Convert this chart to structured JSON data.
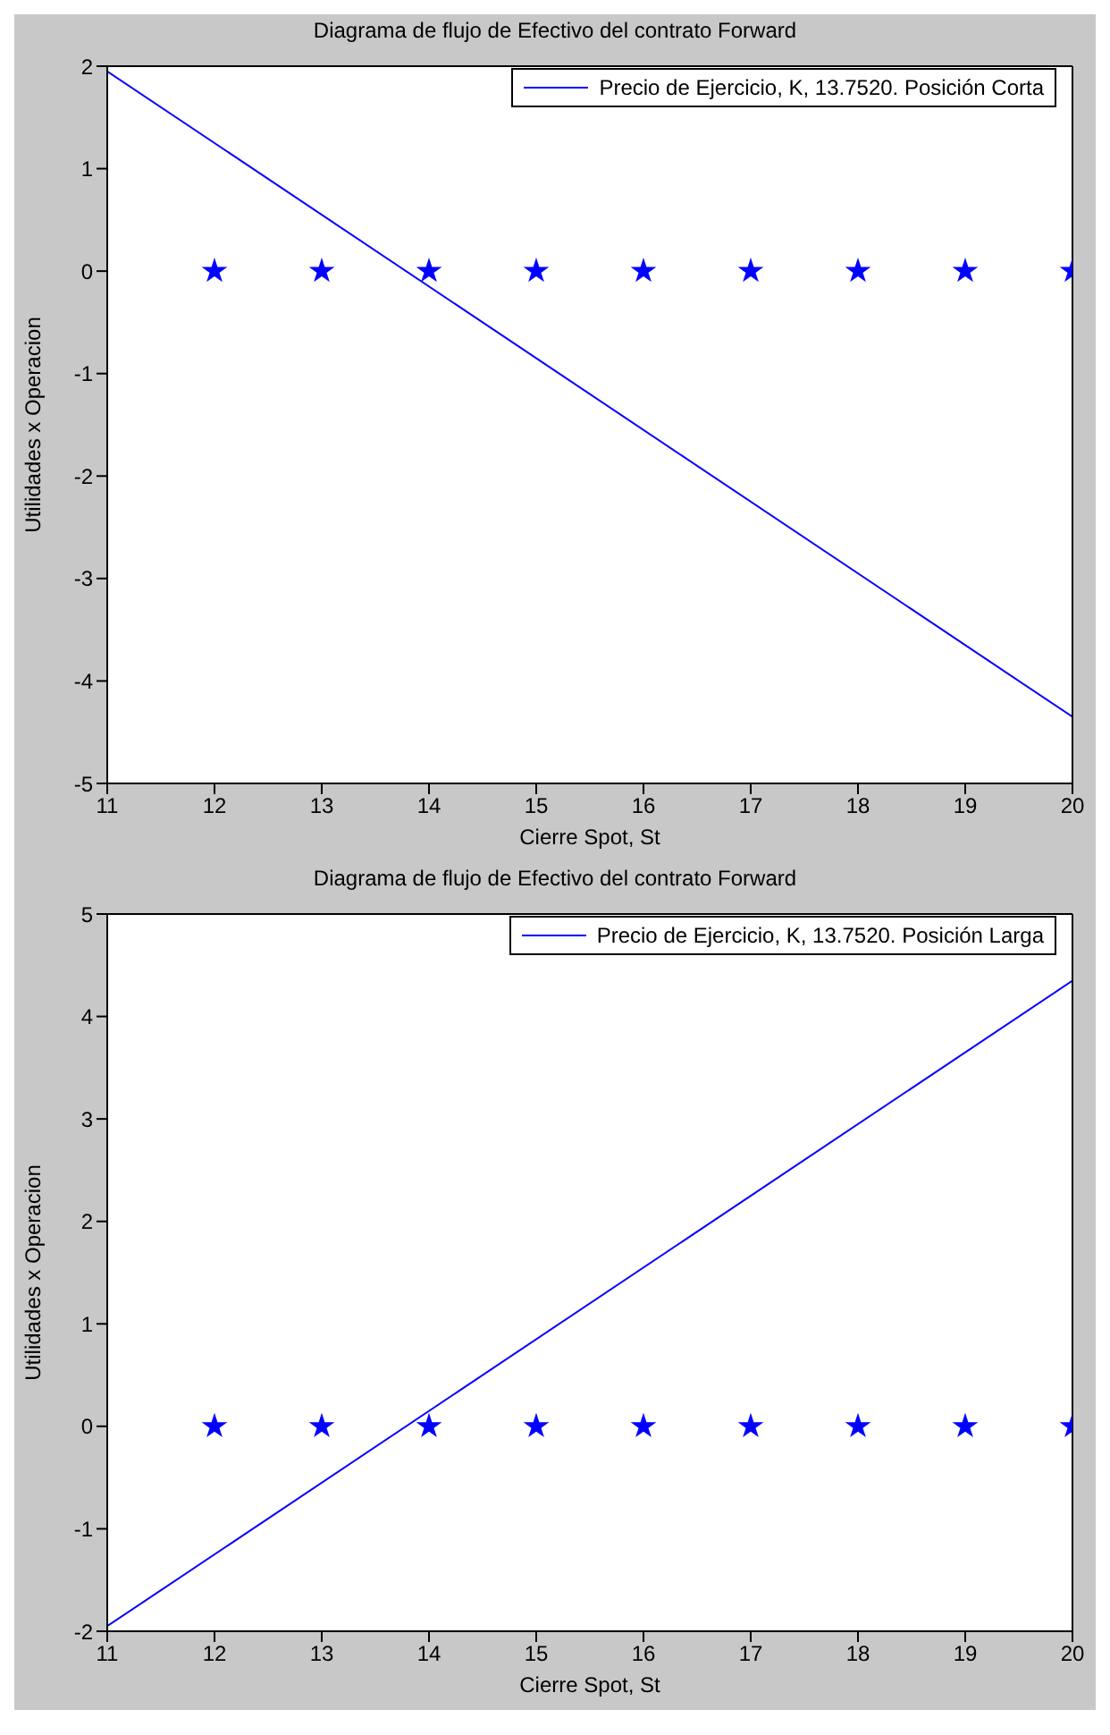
{
  "chart_data": [
    {
      "type": "line",
      "title": "Diagrama de flujo de Efectivo del contrato Forward",
      "xlabel": "Cierre Spot, St",
      "ylabel": "Utilidades x Operacion",
      "legend": "top right",
      "series": [
        {
          "name": "Precio de Ejercicio, K, 13.7520. Posición Corta",
          "color": "#0000ff",
          "marker": "none",
          "line_style": "solid",
          "x": [
            11,
            20
          ],
          "values": [
            1.95,
            -4.35
          ]
        },
        {
          "color": "#0000ff",
          "type": "scatter",
          "marker": "star",
          "x": [
            12,
            13,
            14,
            15,
            16,
            17,
            18,
            19,
            20
          ],
          "values": [
            0,
            0,
            0,
            0,
            0,
            0,
            0,
            0,
            0
          ]
        }
      ],
      "xlim": [
        11,
        20
      ],
      "xticks": [
        11,
        12,
        13,
        14,
        15,
        16,
        17,
        18,
        19,
        20
      ],
      "ylim": [
        -5,
        2
      ],
      "yticks": [
        -5,
        -4,
        -3,
        -2,
        -1,
        0,
        1,
        2
      ]
    },
    {
      "type": "line",
      "title": "Diagrama de flujo de Efectivo del contrato Forward",
      "xlabel": "Cierre Spot, St",
      "ylabel": "Utilidades x Operacion",
      "legend": "top right",
      "series": [
        {
          "name": "Precio de Ejercicio, K, 13.7520. Posición Larga",
          "color": "#0000ff",
          "marker": "none",
          "line_style": "solid",
          "x": [
            11,
            20
          ],
          "values": [
            -1.95,
            4.35
          ]
        },
        {
          "color": "#0000ff",
          "type": "scatter",
          "marker": "star",
          "x": [
            12,
            13,
            14,
            15,
            16,
            17,
            18,
            19,
            20
          ],
          "values": [
            0,
            0,
            0,
            0,
            0,
            0,
            0,
            0,
            0
          ]
        }
      ],
      "xlim": [
        11,
        20
      ],
      "xticks": [
        11,
        12,
        13,
        14,
        15,
        16,
        17,
        18,
        19,
        20
      ],
      "ylim": [
        -2,
        5
      ],
      "yticks": [
        -2,
        -1,
        0,
        1,
        2,
        3,
        4,
        5
      ]
    }
  ]
}
